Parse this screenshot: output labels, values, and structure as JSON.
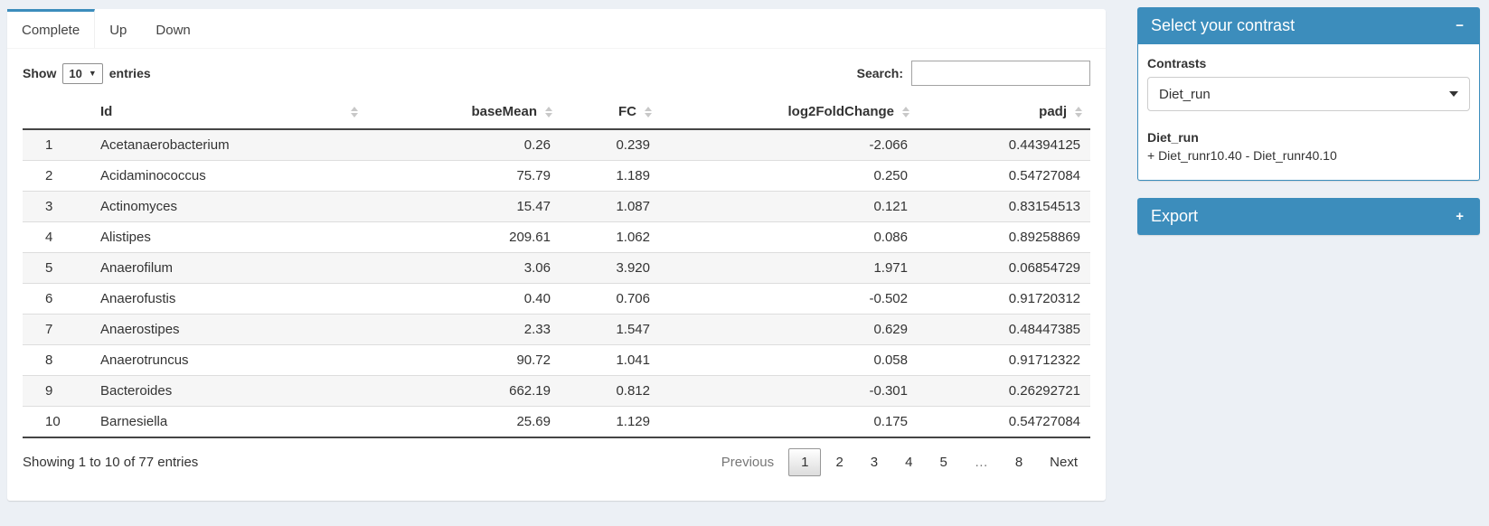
{
  "colors": {
    "accent": "#3c8dbc",
    "page_bg": "#ecf0f5"
  },
  "tabs": {
    "items": [
      {
        "label": "Complete",
        "active": true
      },
      {
        "label": "Up",
        "active": false
      },
      {
        "label": "Down",
        "active": false
      }
    ]
  },
  "controls": {
    "show_label": "Show",
    "length_value": "10",
    "entries_label": "entries",
    "search_label": "Search:",
    "search_value": ""
  },
  "table": {
    "columns": [
      {
        "key": "n",
        "label": "",
        "align": "left",
        "sortable": false
      },
      {
        "key": "id",
        "label": "Id",
        "align": "left",
        "sortable": true
      },
      {
        "key": "base_mean",
        "label": "baseMean",
        "align": "right",
        "sortable": true
      },
      {
        "key": "fc",
        "label": "FC",
        "align": "right",
        "sortable": true
      },
      {
        "key": "log2fc",
        "label": "log2FoldChange",
        "align": "right",
        "sortable": true
      },
      {
        "key": "padj",
        "label": "padj",
        "align": "right",
        "sortable": true
      }
    ],
    "rows": [
      {
        "n": "1",
        "id": "Acetanaerobacterium",
        "base_mean": "0.26",
        "fc": "0.239",
        "log2fc": "-2.066",
        "padj": "0.44394125"
      },
      {
        "n": "2",
        "id": "Acidaminococcus",
        "base_mean": "75.79",
        "fc": "1.189",
        "log2fc": "0.250",
        "padj": "0.54727084"
      },
      {
        "n": "3",
        "id": "Actinomyces",
        "base_mean": "15.47",
        "fc": "1.087",
        "log2fc": "0.121",
        "padj": "0.83154513"
      },
      {
        "n": "4",
        "id": "Alistipes",
        "base_mean": "209.61",
        "fc": "1.062",
        "log2fc": "0.086",
        "padj": "0.89258869"
      },
      {
        "n": "5",
        "id": "Anaerofilum",
        "base_mean": "3.06",
        "fc": "3.920",
        "log2fc": "1.971",
        "padj": "0.06854729"
      },
      {
        "n": "6",
        "id": "Anaerofustis",
        "base_mean": "0.40",
        "fc": "0.706",
        "log2fc": "-0.502",
        "padj": "0.91720312"
      },
      {
        "n": "7",
        "id": "Anaerostipes",
        "base_mean": "2.33",
        "fc": "1.547",
        "log2fc": "0.629",
        "padj": "0.48447385"
      },
      {
        "n": "8",
        "id": "Anaerotruncus",
        "base_mean": "90.72",
        "fc": "1.041",
        "log2fc": "0.058",
        "padj": "0.91712322"
      },
      {
        "n": "9",
        "id": "Bacteroides",
        "base_mean": "662.19",
        "fc": "0.812",
        "log2fc": "-0.301",
        "padj": "0.26292721"
      },
      {
        "n": "10",
        "id": "Barnesiella",
        "base_mean": "25.69",
        "fc": "1.129",
        "log2fc": "0.175",
        "padj": "0.54727084"
      }
    ],
    "info": "Showing 1 to 10 of 77 entries",
    "pagination": [
      {
        "label": "Previous",
        "state": "disabled"
      },
      {
        "label": "1",
        "state": "active"
      },
      {
        "label": "2",
        "state": "normal"
      },
      {
        "label": "3",
        "state": "normal"
      },
      {
        "label": "4",
        "state": "normal"
      },
      {
        "label": "5",
        "state": "normal"
      },
      {
        "label": "…",
        "state": "ellipsis"
      },
      {
        "label": "8",
        "state": "normal"
      },
      {
        "label": "Next",
        "state": "normal"
      }
    ]
  },
  "contrast_panel": {
    "title": "Select your contrast",
    "collapse_icon": "−",
    "contrasts_label": "Contrasts",
    "selected_contrast": "Diet_run",
    "contrast_name": "Diet_run",
    "contrast_formula": "+ Diet_runr10.40 - Diet_runr40.10"
  },
  "export_panel": {
    "title": "Export",
    "expand_icon": "+"
  }
}
